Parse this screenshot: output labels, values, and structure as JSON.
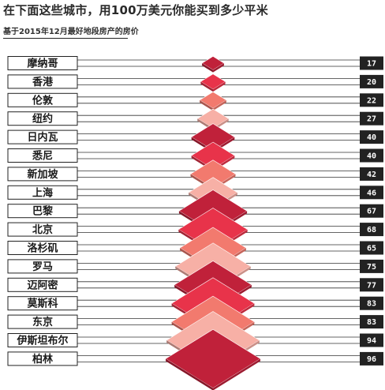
{
  "title": "在下面这些城市，用100万美元你能买到多少平米",
  "subtitle": "基于2015年12月最好地段房产的房价",
  "chart_data": {
    "type": "bar",
    "title": "在下面这些城市，用100万美元你能买到多少平米",
    "subtitle": "基于2015年12月最好地段房产的房价",
    "categories": [
      "摩纳哥",
      "香港",
      "伦敦",
      "纽约",
      "日内瓦",
      "悉尼",
      "新加坡",
      "上海",
      "巴黎",
      "北京",
      "洛杉矶",
      "罗马",
      "迈阿密",
      "莫斯科",
      "东京",
      "伊斯坦布尔",
      "柏林"
    ],
    "values": [
      17,
      20,
      22,
      27,
      40,
      40,
      42,
      46,
      67,
      68,
      65,
      75,
      77,
      83,
      83,
      94,
      96
    ],
    "colors": [
      "#c0213a",
      "#e8334a",
      "#f27a6e",
      "#f7b0a6",
      "#c0213a",
      "#e8334a",
      "#f27a6e",
      "#f7b0a6",
      "#c0213a",
      "#e8334a",
      "#f27a6e",
      "#f7b0a6",
      "#c0213a",
      "#e8334a",
      "#f27a6e",
      "#f7b0a6",
      "#c0213a"
    ],
    "value_badge_color": "#222222"
  }
}
